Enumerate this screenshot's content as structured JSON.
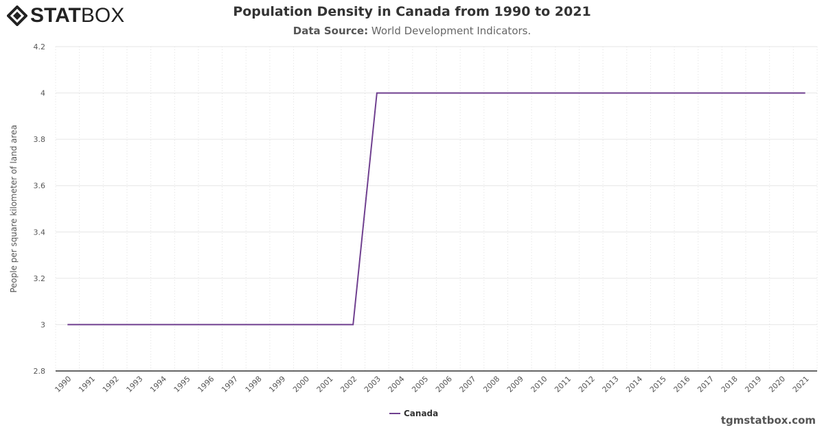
{
  "brand": {
    "logo_text_bold": "STAT",
    "logo_text_light": "BOX"
  },
  "header": {
    "title": "Population Density in Canada from 1990 to 2021",
    "source_label": "Data Source:",
    "source_value": "World Development Indicators."
  },
  "watermark": "tgmstatbox.com",
  "colors": {
    "series": "#6f3f8f",
    "grid": "#e6e6e6",
    "axis": "#333333"
  },
  "chart_data": {
    "type": "line",
    "title": "Population Density in Canada from 1990 to 2021",
    "ylabel": "People per square kilometer of land area",
    "xlabel": "",
    "ylim": [
      2.8,
      4.2
    ],
    "yticks": [
      2.8,
      3,
      3.2,
      3.4,
      3.6,
      3.8,
      4,
      4.2
    ],
    "grid": true,
    "legend": "bottom-center",
    "x": [
      1990,
      1991,
      1992,
      1993,
      1994,
      1995,
      1996,
      1997,
      1998,
      1999,
      2000,
      2001,
      2002,
      2003,
      2004,
      2005,
      2006,
      2007,
      2008,
      2009,
      2010,
      2011,
      2012,
      2013,
      2014,
      2015,
      2016,
      2017,
      2018,
      2019,
      2020,
      2021
    ],
    "series": [
      {
        "name": "Canada",
        "values": [
          3,
          3,
          3,
          3,
          3,
          3,
          3,
          3,
          3,
          3,
          3,
          3,
          3,
          4,
          4,
          4,
          4,
          4,
          4,
          4,
          4,
          4,
          4,
          4,
          4,
          4,
          4,
          4,
          4,
          4,
          4,
          4
        ]
      }
    ]
  }
}
